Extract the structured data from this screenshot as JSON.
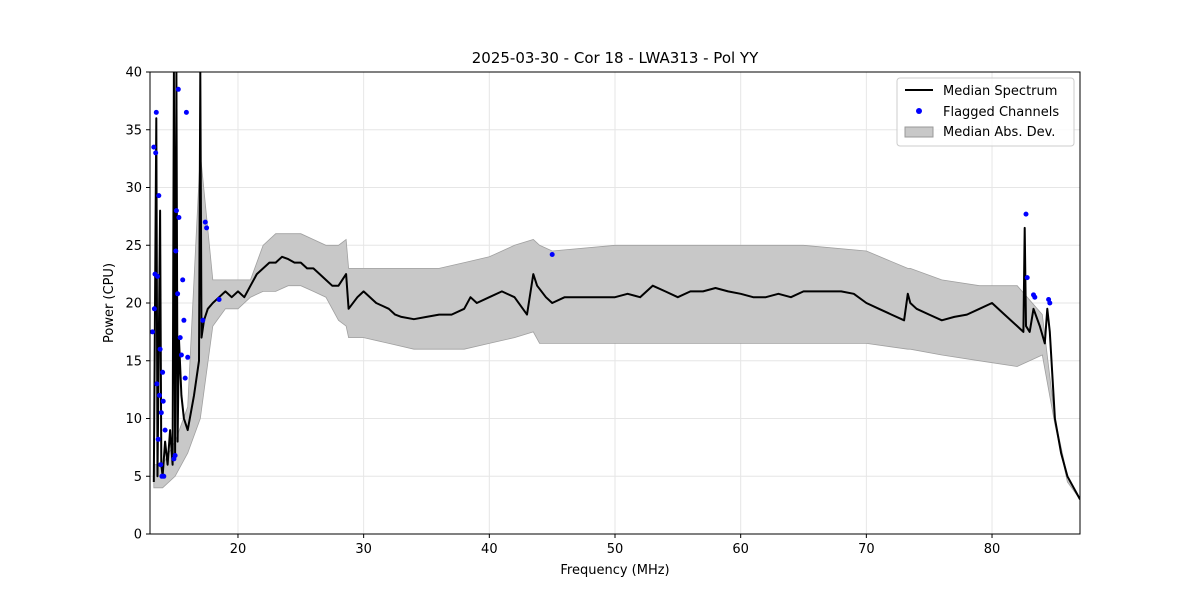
{
  "chart_data": {
    "type": "line",
    "title": "2025-03-30 - Cor 18 - LWA313 - Pol YY",
    "xlabel": "Frequency (MHz)",
    "ylabel": "Power (CPU)",
    "xlim": [
      13.0,
      87.0
    ],
    "ylim": [
      0,
      40
    ],
    "xticks": [
      20,
      30,
      40,
      50,
      60,
      70,
      80
    ],
    "yticks": [
      0,
      5,
      10,
      15,
      20,
      25,
      30,
      35,
      40
    ],
    "grid": true,
    "legend_position": "top-right",
    "colors": {
      "median": "#000000",
      "flagged": "#0000ff",
      "mad": "#c8c8c8"
    },
    "series": [
      {
        "name": "Median Spectrum",
        "x": [
          13.3,
          13.5,
          13.6,
          13.8,
          13.9,
          14.0,
          14.2,
          14.4,
          14.6,
          14.8,
          14.9,
          15.0,
          15.1,
          15.2,
          15.3,
          15.5,
          15.7,
          16.0,
          16.5,
          16.9,
          17.0,
          17.1,
          17.3,
          17.6,
          18.0,
          18.5,
          19.0,
          19.5,
          20.0,
          20.5,
          21.0,
          21.5,
          22.0,
          22.5,
          23.0,
          23.5,
          24.0,
          24.5,
          25.0,
          25.5,
          26.0,
          26.5,
          27.0,
          27.5,
          28.0,
          28.6,
          28.8,
          29.5,
          30.0,
          31.0,
          32.0,
          32.5,
          33.0,
          34.0,
          35.0,
          36.0,
          37.0,
          38.0,
          38.5,
          39.0,
          40.0,
          41.0,
          42.0,
          43.0,
          43.5,
          43.8,
          44.5,
          45.0,
          46.0,
          47.0,
          48.0,
          49.0,
          50.0,
          51.0,
          52.0,
          53.0,
          54.0,
          55.0,
          56.0,
          57.0,
          58.0,
          59.0,
          60.0,
          61.0,
          62.0,
          63.0,
          64.0,
          65.0,
          66.0,
          67.0,
          68.0,
          69.0,
          70.0,
          71.0,
          72.0,
          73.0,
          73.3,
          73.5,
          74.0,
          75.0,
          76.0,
          77.0,
          78.0,
          79.0,
          80.0,
          81.0,
          82.0,
          82.5,
          82.6,
          82.7,
          83.0,
          83.3,
          83.8,
          84.2,
          84.4,
          84.6,
          85.0,
          85.5,
          86.0,
          86.5,
          87.0
        ],
        "values": [
          4.5,
          36,
          5,
          28,
          6,
          5,
          8,
          6,
          9,
          6,
          40,
          7,
          40,
          8,
          17,
          12,
          10,
          9,
          12,
          15,
          40,
          17,
          18.5,
          19.5,
          20,
          20.5,
          21,
          20.5,
          21,
          20.5,
          21.5,
          22.5,
          23,
          23.5,
          23.5,
          24,
          23.8,
          23.5,
          23.5,
          23,
          23,
          22.5,
          22,
          21.5,
          21.5,
          22.5,
          19.5,
          20.5,
          21,
          20,
          19.5,
          19,
          18.8,
          18.6,
          18.8,
          19,
          19,
          19.5,
          20.5,
          20,
          20.5,
          21,
          20.5,
          19,
          22.5,
          21.5,
          20.5,
          20,
          20.5,
          20.5,
          20.5,
          20.5,
          20.5,
          20.8,
          20.5,
          21.5,
          21,
          20.5,
          21,
          21,
          21.3,
          21,
          20.8,
          20.5,
          20.5,
          20.8,
          20.5,
          21,
          21,
          21,
          21,
          20.8,
          20,
          19.5,
          19,
          18.5,
          20.8,
          20,
          19.5,
          19,
          18.5,
          18.8,
          19,
          19.5,
          20,
          19,
          18,
          17.5,
          26.5,
          18,
          17.5,
          19.5,
          18,
          16.5,
          19.5,
          17.5,
          10,
          7,
          5,
          4,
          3
        ]
      },
      {
        "name": "Flagged Channels",
        "x": [
          13.2,
          13.3,
          13.35,
          13.4,
          13.5,
          13.6,
          13.7,
          13.8,
          13.9,
          14.0,
          14.1,
          14.2,
          13.45,
          13.55,
          13.65,
          13.75,
          13.85,
          13.95,
          14.05,
          14.9,
          15.0,
          15.05,
          15.1,
          15.2,
          15.25,
          15.3,
          15.4,
          15.5,
          15.6,
          15.7,
          15.8,
          15.9,
          16.0,
          17.2,
          17.4,
          17.5,
          18.5,
          45.0,
          82.7,
          82.8,
          83.3,
          83.4,
          84.5,
          84.6
        ],
        "values": [
          17.5,
          33.5,
          19.5,
          22.5,
          36.5,
          22.3,
          29.3,
          16,
          10.5,
          14,
          5,
          9,
          33,
          13,
          8.2,
          12,
          6,
          5,
          11.5,
          6.5,
          6.8,
          24.5,
          28,
          20.8,
          38.5,
          27.4,
          17,
          15.5,
          22,
          18.5,
          13.5,
          36.5,
          15.3,
          18.5,
          27,
          26.5,
          20.3,
          24.2,
          27.7,
          22.2,
          20.7,
          20.5,
          20.3,
          20
        ]
      },
      {
        "name": "Median Abs. Dev.",
        "x": [
          13.3,
          14.0,
          15.0,
          16.0,
          17.0,
          18.0,
          19.0,
          20.0,
          21.0,
          22.0,
          23.0,
          24.0,
          25.0,
          26.0,
          27.0,
          28.0,
          28.6,
          28.8,
          30.0,
          32.0,
          34.0,
          36.0,
          38.0,
          40.0,
          42.0,
          43.5,
          44.0,
          45.0,
          50.0,
          55.0,
          60.0,
          65.0,
          70.0,
          73.3,
          73.5,
          76.0,
          79.0,
          82.0,
          84.0,
          85.0,
          86.0,
          87.0
        ],
        "upper": [
          6,
          6,
          8,
          11,
          33,
          22,
          22,
          22,
          22,
          25,
          26,
          26,
          26,
          25.5,
          25,
          25,
          25.5,
          23,
          23,
          23,
          23,
          23,
          23.5,
          24,
          25,
          25.5,
          25,
          24.5,
          25,
          25,
          25,
          25,
          24.5,
          23,
          23,
          22,
          21.5,
          21.5,
          19,
          10,
          5,
          3
        ],
        "lower": [
          4,
          4,
          5,
          7,
          10,
          18,
          19.5,
          19.5,
          20.5,
          21,
          21,
          21.5,
          21.5,
          21,
          20.5,
          18.5,
          18,
          17,
          17,
          16.5,
          16,
          16,
          16,
          16.5,
          17,
          17.5,
          16.5,
          16.5,
          16.5,
          16.5,
          16.5,
          16.5,
          16.5,
          16,
          16,
          15.5,
          15,
          14.5,
          15.5,
          9.5,
          4.5,
          3
        ]
      }
    ]
  }
}
